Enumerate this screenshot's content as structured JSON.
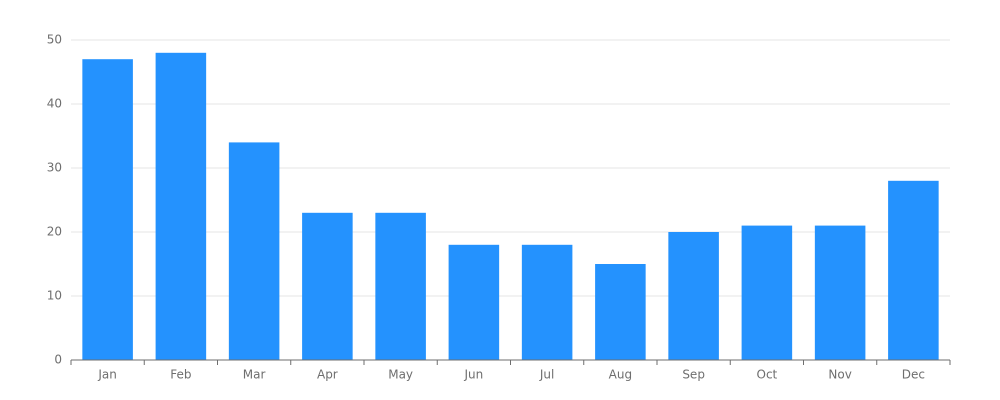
{
  "chart_data": {
    "type": "bar",
    "categories": [
      "Jan",
      "Feb",
      "Mar",
      "Apr",
      "May",
      "Jun",
      "Jul",
      "Aug",
      "Sep",
      "Oct",
      "Nov",
      "Dec"
    ],
    "values": [
      47,
      48,
      34,
      23,
      23,
      18,
      18,
      15,
      20,
      21,
      21,
      28
    ],
    "color": "#2492fe",
    "ylim": [
      0,
      50
    ],
    "yticks": [
      0,
      10,
      20,
      30,
      40,
      50
    ],
    "grid": true
  }
}
